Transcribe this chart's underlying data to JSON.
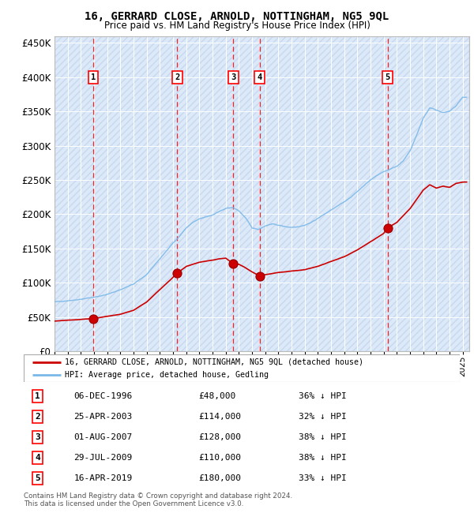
{
  "title": "16, GERRARD CLOSE, ARNOLD, NOTTINGHAM, NG5 9QL",
  "subtitle": "Price paid vs. HM Land Registry's House Price Index (HPI)",
  "ylim": [
    0,
    460000
  ],
  "xlim_start": 1994.0,
  "xlim_end": 2025.5,
  "background_color": "#dce9f8",
  "grid_color": "#ffffff",
  "line_color_hpi": "#7ab8e8",
  "line_color_property": "#cc0000",
  "sale_points": [
    {
      "label": "1",
      "date_year": 1996.93,
      "price": 48000
    },
    {
      "label": "2",
      "date_year": 2003.32,
      "price": 114000
    },
    {
      "label": "3",
      "date_year": 2007.58,
      "price": 128000
    },
    {
      "label": "4",
      "date_year": 2009.57,
      "price": 110000
    },
    {
      "label": "5",
      "date_year": 2019.29,
      "price": 180000
    }
  ],
  "sale_table": [
    {
      "num": "1",
      "date": "06-DEC-1996",
      "price": "£48,000",
      "hpi": "36% ↓ HPI"
    },
    {
      "num": "2",
      "date": "25-APR-2003",
      "price": "£114,000",
      "hpi": "32% ↓ HPI"
    },
    {
      "num": "3",
      "date": "01-AUG-2007",
      "price": "£128,000",
      "hpi": "38% ↓ HPI"
    },
    {
      "num": "4",
      "date": "29-JUL-2009",
      "price": "£110,000",
      "hpi": "38% ↓ HPI"
    },
    {
      "num": "5",
      "date": "16-APR-2019",
      "price": "£180,000",
      "hpi": "33% ↓ HPI"
    }
  ],
  "footer": "Contains HM Land Registry data © Crown copyright and database right 2024.\nThis data is licensed under the Open Government Licence v3.0.",
  "legend_property": "16, GERRARD CLOSE, ARNOLD, NOTTINGHAM, NG5 9QL (detached house)",
  "legend_hpi": "HPI: Average price, detached house, Gedling",
  "yticks": [
    0,
    50000,
    100000,
    150000,
    200000,
    250000,
    300000,
    350000,
    400000,
    450000
  ],
  "ytick_labels": [
    "£0",
    "£50K",
    "£100K",
    "£150K",
    "£200K",
    "£250K",
    "£300K",
    "£350K",
    "£400K",
    "£450K"
  ]
}
